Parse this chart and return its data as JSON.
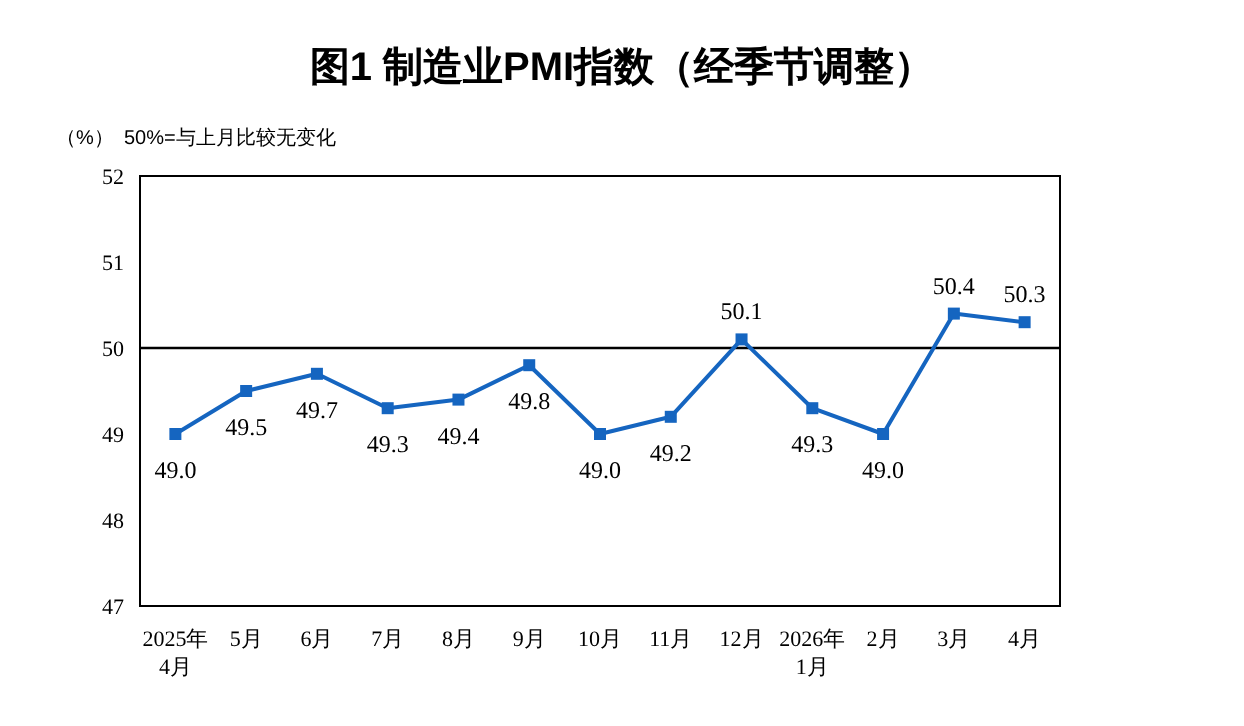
{
  "chart_data": {
    "type": "line",
    "title": "图1 制造业PMI指数（经季节调整）",
    "ylabel": "（%）",
    "annotations": [
      "50%=与上月比较无变化"
    ],
    "categories": [
      "2025年\n4月",
      "5月",
      "6月",
      "7月",
      "8月",
      "9月",
      "10月",
      "11月",
      "12月",
      "2026年\n1月",
      "2月",
      "3月",
      "4月"
    ],
    "series": [
      {
        "color": "#1565c0",
        "values": [
          49.0,
          49.5,
          49.7,
          49.3,
          49.4,
          49.8,
          49.0,
          49.2,
          50.1,
          49.3,
          49.0,
          50.4,
          50.3
        ],
        "value_labels": [
          "49.0",
          "49.5",
          "49.7",
          "49.3",
          "49.4",
          "49.8",
          "49.0",
          "49.2",
          "50.1",
          "49.3",
          "49.0",
          "50.4",
          "50.3"
        ]
      }
    ],
    "ylim": [
      47,
      52
    ],
    "yticks": [
      47,
      48,
      49,
      50,
      51,
      52
    ],
    "ref_lines": [
      {
        "axis": "y",
        "value": 50,
        "color": "#000000"
      }
    ],
    "marker": "square",
    "line_style": "solid"
  }
}
